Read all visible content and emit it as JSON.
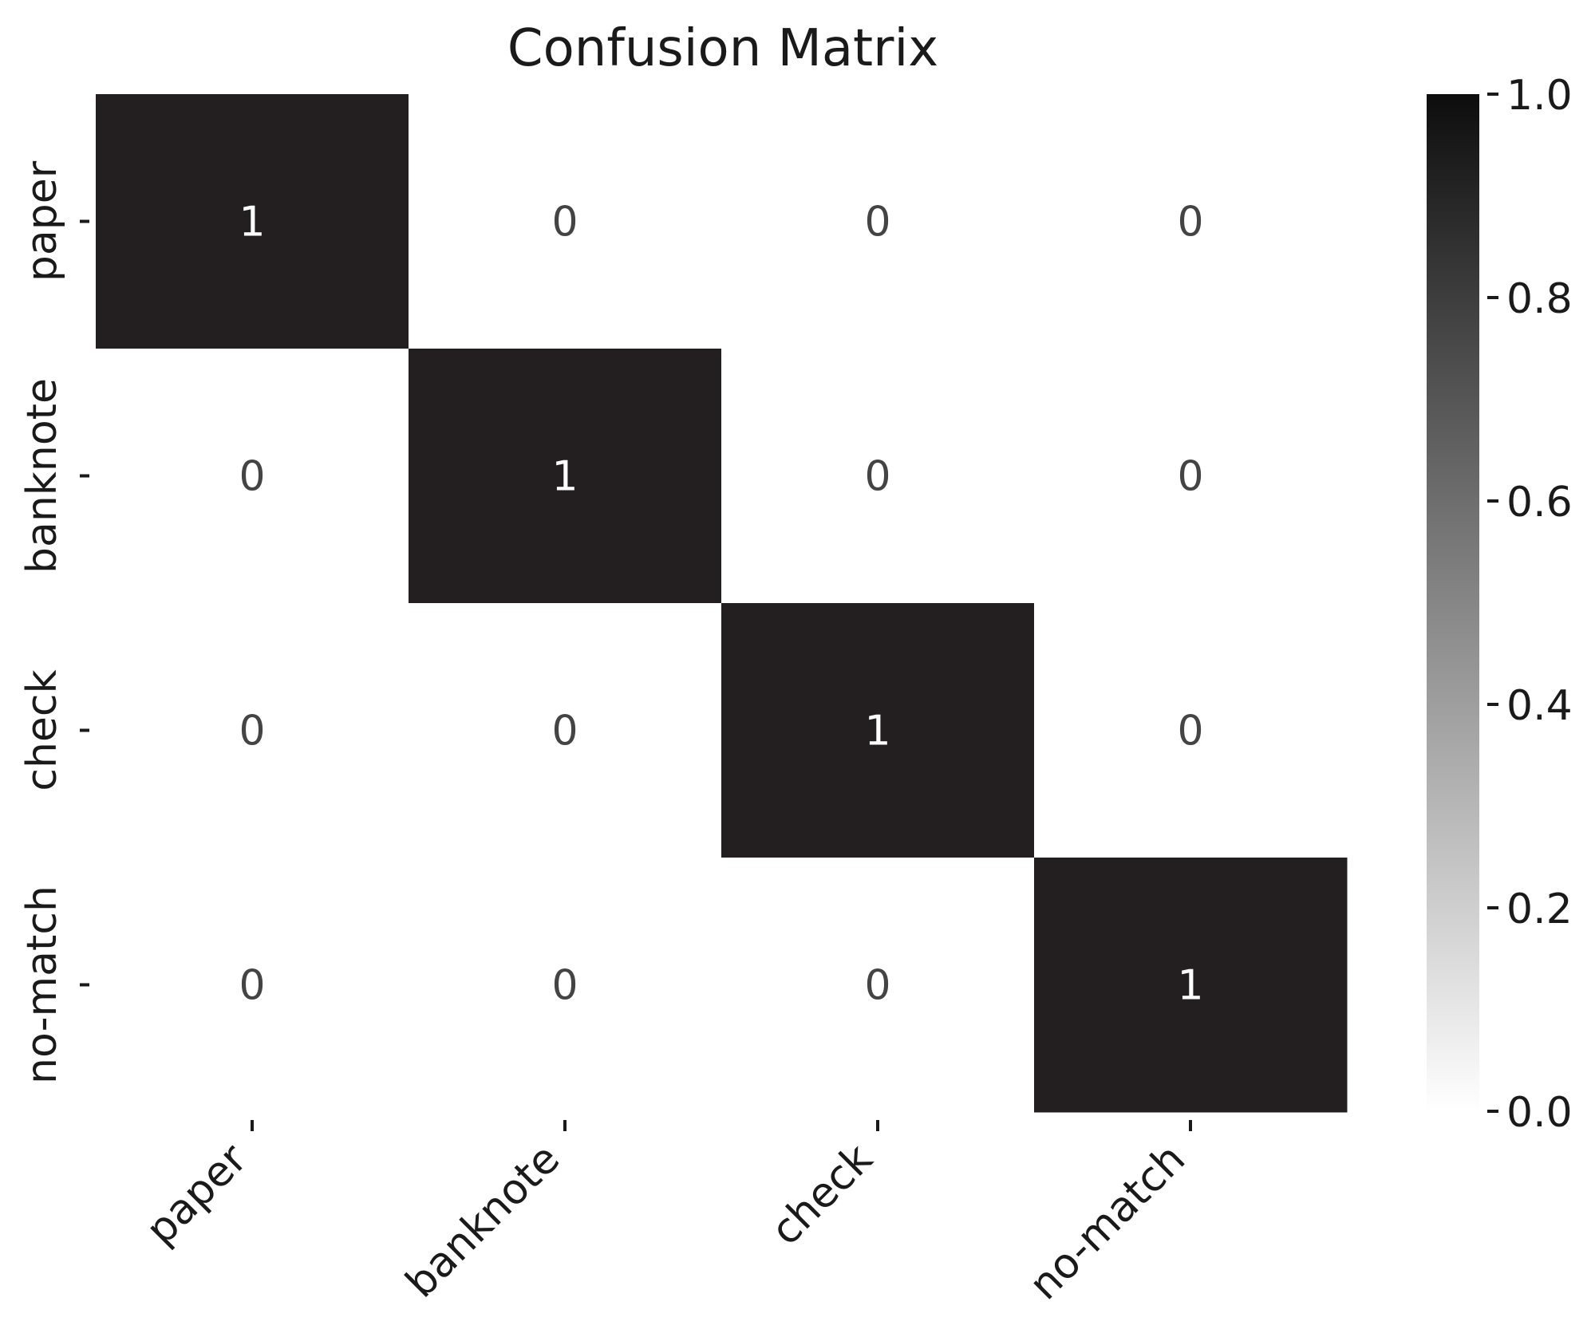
{
  "chart_data": {
    "type": "heatmap",
    "title": "Confusion Matrix",
    "row_labels": [
      "paper",
      "banknote",
      "check",
      "no-match"
    ],
    "col_labels": [
      "paper",
      "banknote",
      "check",
      "no-match"
    ],
    "values": [
      [
        1,
        0,
        0,
        0
      ],
      [
        0,
        1,
        0,
        0
      ],
      [
        0,
        0,
        1,
        0
      ],
      [
        0,
        0,
        0,
        1
      ]
    ],
    "colorbar": {
      "min": 0.0,
      "max": 1.0,
      "ticks": [
        "0.0",
        "0.2",
        "0.4",
        "0.6",
        "0.8",
        "1.0"
      ]
    },
    "colors": {
      "high": "#231f20",
      "low": "#ffffff",
      "text_on_dark": "#ffffff",
      "text_on_light": "#444444"
    }
  }
}
